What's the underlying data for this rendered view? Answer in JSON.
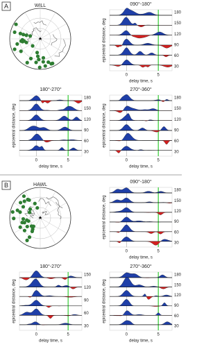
{
  "panels": [
    {
      "label": "A",
      "map": {
        "station": "WILL"
      },
      "plots": [
        {
          "title": "090°-180°",
          "y_axis_label": "epicentral distance, deg",
          "y_ticks": [
            "180",
            "150",
            "120",
            "90",
            "60",
            "30"
          ],
          "x_ticks": [
            "0",
            "5"
          ],
          "x_axis_label": "delay time, s"
        },
        {
          "title": "180°-270°",
          "y_axis_label": "epicentral distance, deg",
          "y_ticks": [
            "180",
            "150",
            "120",
            "90",
            "60",
            "30"
          ],
          "x_ticks": [
            "0",
            "5"
          ],
          "x_axis_label": "delay time, s"
        },
        {
          "title": "270°-360°",
          "y_axis_label": "epicentral distance, deg",
          "y_ticks": [
            "180",
            "150",
            "120",
            "90",
            "60",
            "30"
          ],
          "x_ticks": [
            "0",
            "5"
          ],
          "x_axis_label": "delay time, s"
        }
      ]
    },
    {
      "label": "B",
      "map": {
        "station": "HAWL"
      },
      "plots": [
        {
          "title": "090°-180°",
          "y_axis_label": "epicentral distance, deg",
          "y_ticks": [
            "180",
            "150",
            "120",
            "90",
            "60",
            "30"
          ],
          "x_ticks": [
            "0",
            "5"
          ],
          "x_axis_label": "delay time, s"
        },
        {
          "title": "180°-270°",
          "y_axis_label": "epicentral distance, deg",
          "y_ticks": [
            "150",
            "120",
            "90",
            "60",
            "30"
          ],
          "x_ticks": [
            "0",
            "5"
          ],
          "x_axis_label": "delay time, s"
        },
        {
          "title": "270°-360°",
          "y_axis_label": "epicentral distance, deg",
          "y_ticks": [
            "180",
            "150",
            "120",
            "90",
            "60",
            "30"
          ],
          "x_ticks": [
            "0",
            "5"
          ],
          "x_axis_label": "delay time, s"
        }
      ]
    }
  ]
}
